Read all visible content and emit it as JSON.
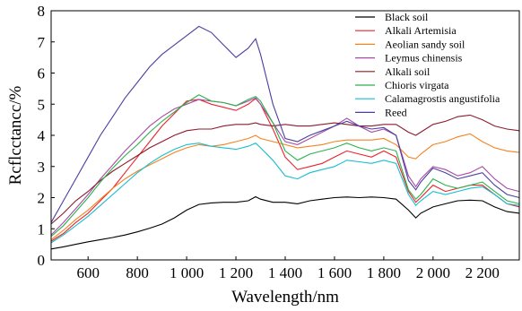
{
  "chart_data": {
    "type": "line",
    "xlabel": "Wavelength/nm",
    "ylabel": "Rcflcctancc/%",
    "xlim": [
      450,
      2350
    ],
    "ylim": [
      0,
      8
    ],
    "x_ticks": [
      600,
      800,
      1000,
      1200,
      1400,
      1600,
      1800,
      2000,
      2200
    ],
    "x_tick_labels": [
      "600",
      "800",
      "1 000",
      "1 200",
      "1 400",
      "1 600",
      "1 800",
      "2 000",
      "2 200"
    ],
    "y_ticks": [
      0,
      1,
      2,
      3,
      4,
      5,
      6,
      7,
      8
    ],
    "y_tick_labels": [
      "0",
      "1",
      "2",
      "3",
      "4",
      "5",
      "6",
      "7",
      "8"
    ],
    "grid": false,
    "legend_position": "top-right",
    "series": [
      {
        "name": "Black soil",
        "color": "#000000",
        "x": [
          450,
          500,
          550,
          600,
          650,
          700,
          750,
          800,
          850,
          900,
          950,
          1000,
          1050,
          1100,
          1150,
          1200,
          1250,
          1280,
          1300,
          1350,
          1400,
          1450,
          1500,
          1550,
          1600,
          1650,
          1700,
          1750,
          1800,
          1850,
          1900,
          1930,
          1950,
          2000,
          2050,
          2100,
          2150,
          2200,
          2250,
          2300,
          2350
        ],
        "y": [
          0.35,
          0.42,
          0.5,
          0.58,
          0.65,
          0.72,
          0.8,
          0.9,
          1.02,
          1.15,
          1.35,
          1.6,
          1.78,
          1.83,
          1.85,
          1.85,
          1.9,
          2.03,
          1.95,
          1.85,
          1.85,
          1.8,
          1.9,
          1.95,
          2.0,
          2.02,
          2.0,
          2.02,
          2.0,
          1.95,
          1.6,
          1.35,
          1.5,
          1.7,
          1.8,
          1.9,
          1.92,
          1.9,
          1.7,
          1.55,
          1.5
        ]
      },
      {
        "name": "Alkali Artemisia",
        "color": "#e8242c",
        "x": [
          450,
          500,
          550,
          600,
          650,
          700,
          750,
          800,
          850,
          900,
          950,
          1000,
          1050,
          1100,
          1150,
          1200,
          1250,
          1280,
          1300,
          1350,
          1400,
          1450,
          1500,
          1550,
          1600,
          1650,
          1700,
          1750,
          1800,
          1850,
          1900,
          1930,
          1950,
          2000,
          2050,
          2100,
          2150,
          2200,
          2250,
          2300,
          2350
        ],
        "y": [
          0.6,
          0.85,
          1.2,
          1.5,
          1.9,
          2.3,
          2.8,
          3.3,
          3.8,
          4.3,
          4.7,
          5.1,
          5.15,
          5.0,
          4.9,
          4.8,
          5.0,
          5.18,
          5.0,
          4.2,
          3.3,
          2.9,
          3.0,
          3.1,
          3.3,
          3.5,
          3.4,
          3.3,
          3.5,
          3.3,
          2.2,
          1.85,
          2.0,
          2.4,
          2.2,
          2.3,
          2.4,
          2.4,
          2.1,
          1.8,
          1.7
        ]
      },
      {
        "name": "Aeolian sandy soil",
        "color": "#f5821f",
        "x": [
          450,
          500,
          550,
          600,
          650,
          700,
          750,
          800,
          850,
          900,
          950,
          1000,
          1050,
          1100,
          1150,
          1200,
          1250,
          1280,
          1300,
          1350,
          1400,
          1450,
          1500,
          1550,
          1600,
          1650,
          1700,
          1750,
          1800,
          1850,
          1900,
          1930,
          1950,
          2000,
          2050,
          2100,
          2150,
          2200,
          2250,
          2300,
          2350
        ],
        "y": [
          0.65,
          0.95,
          1.3,
          1.6,
          1.95,
          2.3,
          2.6,
          2.85,
          3.05,
          3.25,
          3.45,
          3.6,
          3.7,
          3.65,
          3.7,
          3.8,
          3.9,
          4.0,
          3.9,
          3.8,
          3.7,
          3.6,
          3.65,
          3.7,
          3.8,
          3.85,
          3.85,
          3.85,
          3.9,
          3.7,
          3.3,
          3.25,
          3.4,
          3.7,
          3.8,
          3.95,
          4.05,
          3.8,
          3.6,
          3.5,
          3.45
        ]
      },
      {
        "name": "Leymus chinensis",
        "color": "#a64ca6",
        "x": [
          450,
          500,
          550,
          600,
          650,
          700,
          750,
          800,
          850,
          900,
          950,
          1000,
          1050,
          1100,
          1150,
          1200,
          1250,
          1280,
          1300,
          1350,
          1400,
          1450,
          1500,
          1550,
          1600,
          1650,
          1700,
          1750,
          1800,
          1850,
          1900,
          1930,
          1950,
          2000,
          2050,
          2100,
          2150,
          2200,
          2250,
          2300,
          2350
        ],
        "y": [
          0.8,
          1.2,
          1.65,
          2.1,
          2.6,
          3.05,
          3.5,
          3.9,
          4.3,
          4.6,
          4.85,
          5.0,
          5.15,
          5.1,
          5.05,
          4.95,
          5.1,
          5.2,
          5.0,
          4.4,
          3.8,
          3.7,
          3.9,
          4.1,
          4.3,
          4.55,
          4.3,
          4.1,
          4.2,
          4.0,
          2.7,
          2.35,
          2.6,
          3.0,
          2.9,
          2.7,
          2.8,
          3.0,
          2.6,
          2.3,
          2.2
        ]
      },
      {
        "name": "Alkali soil",
        "color": "#8b1c2e",
        "x": [
          450,
          500,
          550,
          600,
          650,
          700,
          750,
          800,
          850,
          900,
          950,
          1000,
          1050,
          1100,
          1150,
          1200,
          1250,
          1280,
          1300,
          1350,
          1400,
          1450,
          1500,
          1550,
          1600,
          1650,
          1700,
          1750,
          1800,
          1850,
          1900,
          1930,
          1950,
          2000,
          2050,
          2100,
          2150,
          2200,
          2250,
          2300,
          2350
        ],
        "y": [
          1.15,
          1.5,
          1.9,
          2.2,
          2.55,
          2.85,
          3.1,
          3.35,
          3.6,
          3.8,
          4.0,
          4.15,
          4.2,
          4.2,
          4.3,
          4.35,
          4.35,
          4.4,
          4.35,
          4.3,
          4.35,
          4.3,
          4.3,
          4.35,
          4.4,
          4.35,
          4.3,
          4.3,
          4.35,
          4.35,
          4.1,
          4.0,
          4.1,
          4.35,
          4.45,
          4.6,
          4.65,
          4.5,
          4.3,
          4.2,
          4.15
        ]
      },
      {
        "name": "Chioris virgata",
        "color": "#2bb24c",
        "x": [
          450,
          500,
          550,
          600,
          650,
          700,
          750,
          800,
          850,
          900,
          950,
          1000,
          1050,
          1100,
          1150,
          1200,
          1250,
          1280,
          1300,
          1350,
          1400,
          1450,
          1500,
          1550,
          1600,
          1650,
          1700,
          1750,
          1800,
          1850,
          1900,
          1930,
          1950,
          2000,
          2050,
          2100,
          2150,
          2200,
          2250,
          2300,
          2350
        ],
        "y": [
          0.75,
          1.1,
          1.55,
          2.0,
          2.5,
          2.95,
          3.35,
          3.7,
          4.1,
          4.45,
          4.75,
          5.05,
          5.3,
          5.1,
          5.05,
          4.95,
          5.15,
          5.25,
          5.1,
          4.4,
          3.5,
          3.2,
          3.4,
          3.5,
          3.6,
          3.75,
          3.6,
          3.5,
          3.6,
          3.5,
          2.25,
          1.95,
          2.1,
          2.6,
          2.4,
          2.3,
          2.4,
          2.5,
          2.2,
          1.9,
          1.8
        ]
      },
      {
        "name": "Calamagrostis angustifolia",
        "color": "#17becf",
        "x": [
          450,
          500,
          550,
          600,
          650,
          700,
          750,
          800,
          850,
          900,
          950,
          1000,
          1050,
          1100,
          1150,
          1200,
          1250,
          1280,
          1300,
          1350,
          1400,
          1450,
          1500,
          1550,
          1600,
          1650,
          1700,
          1750,
          1800,
          1850,
          1900,
          1930,
          1950,
          2000,
          2050,
          2100,
          2150,
          2200,
          2250,
          2300,
          2350
        ],
        "y": [
          0.55,
          0.8,
          1.1,
          1.4,
          1.75,
          2.1,
          2.45,
          2.8,
          3.1,
          3.35,
          3.55,
          3.7,
          3.75,
          3.65,
          3.6,
          3.55,
          3.65,
          3.75,
          3.6,
          3.2,
          2.7,
          2.6,
          2.8,
          2.9,
          3.0,
          3.2,
          3.15,
          3.1,
          3.2,
          3.1,
          2.1,
          1.75,
          1.9,
          2.2,
          2.1,
          2.2,
          2.3,
          2.35,
          2.1,
          1.8,
          1.75
        ]
      },
      {
        "name": "Reed",
        "color": "#4a3f9f",
        "x": [
          450,
          500,
          550,
          600,
          650,
          700,
          750,
          800,
          850,
          900,
          950,
          1000,
          1050,
          1100,
          1150,
          1200,
          1250,
          1280,
          1300,
          1350,
          1400,
          1450,
          1500,
          1550,
          1600,
          1650,
          1700,
          1750,
          1800,
          1850,
          1900,
          1930,
          1950,
          2000,
          2050,
          2100,
          2150,
          2200,
          2250,
          2300,
          2350
        ],
        "y": [
          1.2,
          1.9,
          2.6,
          3.3,
          4.0,
          4.6,
          5.2,
          5.7,
          6.2,
          6.6,
          6.9,
          7.2,
          7.5,
          7.3,
          6.9,
          6.5,
          6.8,
          7.1,
          6.6,
          5.0,
          3.9,
          3.8,
          4.0,
          4.15,
          4.3,
          4.45,
          4.3,
          4.2,
          4.25,
          4.0,
          2.55,
          2.25,
          2.5,
          2.95,
          2.8,
          2.6,
          2.7,
          2.8,
          2.4,
          2.1,
          2.0
        ]
      }
    ]
  }
}
